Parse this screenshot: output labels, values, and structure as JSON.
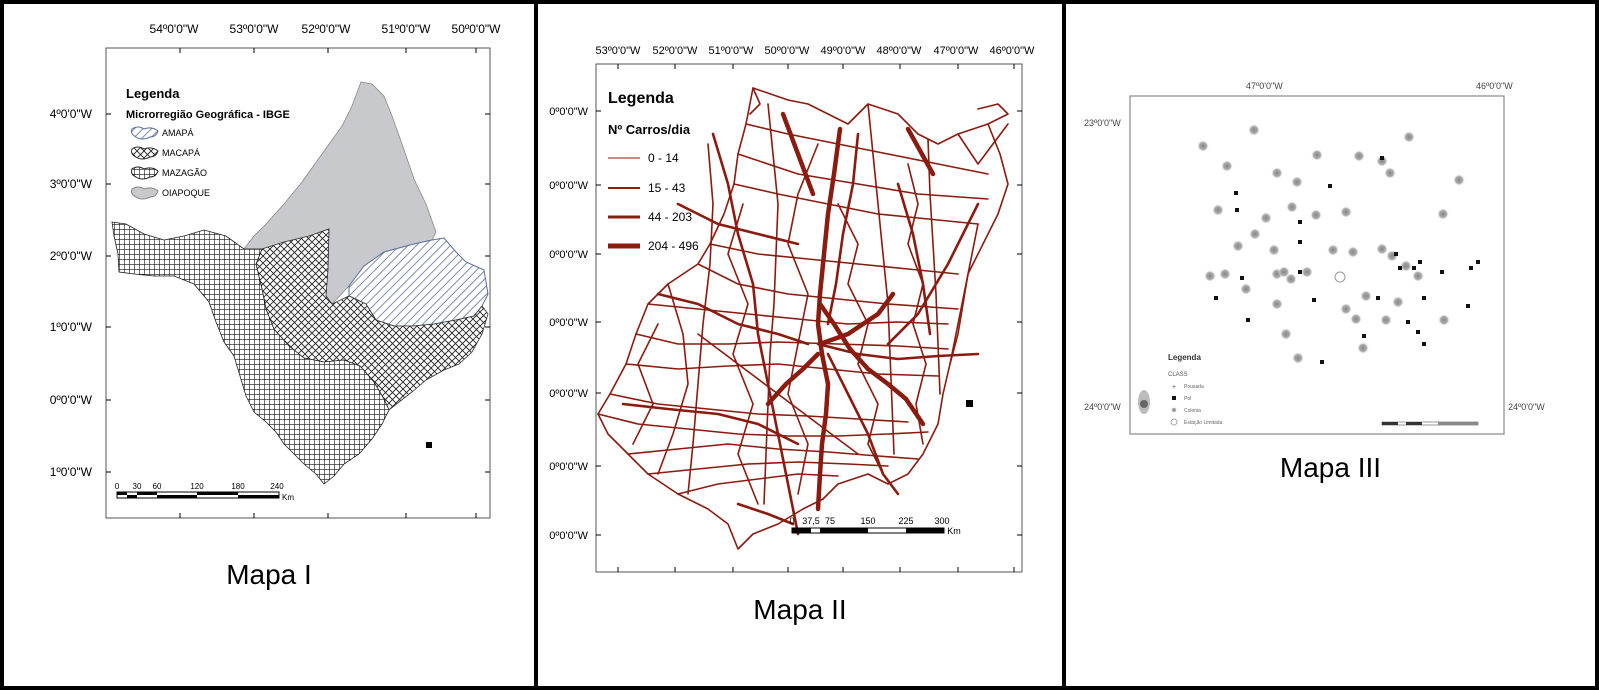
{
  "colors": {
    "frame": "#000000",
    "road": "#8B1A0F",
    "amapa": "#5a6f9a",
    "oiapoque_fill": "#c8c9cc"
  },
  "map1": {
    "caption": "Mapa I",
    "lon_labels": [
      "54º0'0\"W",
      "53º0'0\"W",
      "52º0'0\"W",
      "51º0'0\"W",
      "50º0'0\"W"
    ],
    "lat_labels": [
      "4º0'0\"W",
      "3º0'0\"W",
      "2º0'0\"W",
      "1º0'0\"W",
      "0º0'0\"W",
      "1º0'0\"W"
    ],
    "legend": {
      "title": "Legenda",
      "subtitle": "Microrregião Geográfica - IBGE",
      "items": [
        {
          "label": "AMAPÁ",
          "pattern": "diagonal-hatch"
        },
        {
          "label": "MACAPÁ",
          "pattern": "crosshatch"
        },
        {
          "label": "MAZAGÃO",
          "pattern": "grid"
        },
        {
          "label": "OIAPOQUE",
          "pattern": "solid-gray"
        }
      ]
    },
    "scale": {
      "ticks": [
        "0",
        "30",
        "60",
        "120",
        "180",
        "240"
      ],
      "unit": "Km"
    }
  },
  "map2": {
    "caption": "Mapa II",
    "lon_labels": [
      "53º0'0\"W",
      "52º0'0\"W",
      "51º0'0\"W",
      "50º0'0\"W",
      "49º0'0\"W",
      "48º0'0\"W",
      "47º0'0\"W",
      "46º0'0\"W"
    ],
    "lat_labels": [
      "0º0'0\"W",
      "0º0'0\"W",
      "0º0'0\"W",
      "0º0'0\"W",
      "0º0'0\"W",
      "0º0'0\"W",
      "0º0'0\"W"
    ],
    "legend": {
      "title": "Legenda",
      "subtitle": "Nº Carros/dia",
      "items": [
        {
          "label": "0 - 14",
          "stroke": 1
        },
        {
          "label": "15 - 43",
          "stroke": 2
        },
        {
          "label": "44 - 203",
          "stroke": 3
        },
        {
          "label": "204 - 496",
          "stroke": 5
        }
      ]
    },
    "scale": {
      "ticks": [
        "0",
        "37,5",
        "75",
        "150",
        "225",
        "300"
      ],
      "unit": "Km"
    }
  },
  "map3": {
    "caption": "Mapa III",
    "lon_labels": [
      "47º0'0\"W",
      "46º0'0\"W"
    ],
    "lat_labels": [
      "23º0'0\"W",
      "24º0'0\"W"
    ],
    "legend": {
      "title": "Legenda",
      "subtitle": "CLASS",
      "items": [
        "Pousada",
        "Pol",
        "Colonia",
        "Estação Limitada"
      ]
    }
  }
}
